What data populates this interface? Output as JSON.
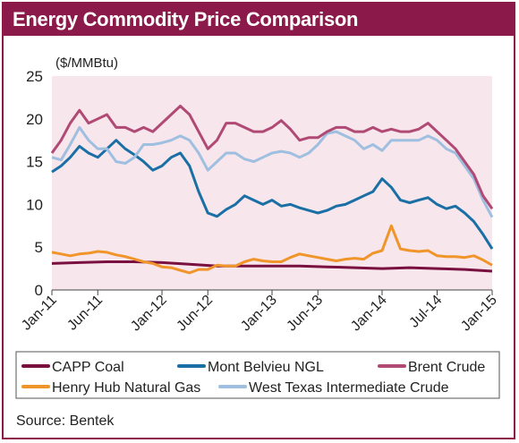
{
  "chart_data": {
    "type": "line",
    "title": "Energy Commodity Price Comparison",
    "ylabel": "($/MMBtu)",
    "ylim": [
      0,
      25
    ],
    "yticks": [
      0,
      5,
      10,
      15,
      20,
      25
    ],
    "xlim": [
      "2011-01",
      "2015-01"
    ],
    "xticks": [
      "Jan-11",
      "Jun-11",
      "Jan-12",
      "Jun-12",
      "Jan-13",
      "Jun-13",
      "Jan-14",
      "Jul-14",
      "Jan-15"
    ],
    "xtick_dates": [
      "2011-01",
      "2011-06",
      "2012-01",
      "2012-06",
      "2013-01",
      "2013-06",
      "2014-01",
      "2014-07",
      "2015-01"
    ],
    "grid": false,
    "legend_position": "bottom",
    "source": "Source: Bentek",
    "series": [
      {
        "name": "CAPP Coal",
        "color": "#7a1040",
        "points": [
          [
            "2011-01",
            3.1
          ],
          [
            "2011-04",
            3.2
          ],
          [
            "2011-07",
            3.3
          ],
          [
            "2011-10",
            3.3
          ],
          [
            "2012-01",
            3.2
          ],
          [
            "2012-04",
            3.0
          ],
          [
            "2012-07",
            2.8
          ],
          [
            "2012-10",
            2.8
          ],
          [
            "2013-01",
            2.8
          ],
          [
            "2013-04",
            2.8
          ],
          [
            "2013-07",
            2.7
          ],
          [
            "2013-10",
            2.6
          ],
          [
            "2014-01",
            2.5
          ],
          [
            "2014-04",
            2.6
          ],
          [
            "2014-07",
            2.5
          ],
          [
            "2014-10",
            2.4
          ],
          [
            "2015-01",
            2.2
          ]
        ]
      },
      {
        "name": "Mont Belvieu NGL",
        "color": "#1a6fa5",
        "points": [
          [
            "2011-01",
            13.8
          ],
          [
            "2011-02",
            14.5
          ],
          [
            "2011-03",
            15.5
          ],
          [
            "2011-04",
            16.8
          ],
          [
            "2011-05",
            16.0
          ],
          [
            "2011-06",
            15.5
          ],
          [
            "2011-07",
            16.5
          ],
          [
            "2011-08",
            17.5
          ],
          [
            "2011-09",
            16.5
          ],
          [
            "2011-10",
            15.8
          ],
          [
            "2011-11",
            15.0
          ],
          [
            "2011-12",
            14.0
          ],
          [
            "2012-01",
            14.5
          ],
          [
            "2012-02",
            15.5
          ],
          [
            "2012-03",
            16.0
          ],
          [
            "2012-04",
            14.5
          ],
          [
            "2012-05",
            11.5
          ],
          [
            "2012-06",
            9.0
          ],
          [
            "2012-07",
            8.6
          ],
          [
            "2012-08",
            9.4
          ],
          [
            "2012-09",
            10.0
          ],
          [
            "2012-10",
            11.0
          ],
          [
            "2012-11",
            10.5
          ],
          [
            "2012-12",
            10.0
          ],
          [
            "2013-01",
            10.5
          ],
          [
            "2013-02",
            9.8
          ],
          [
            "2013-03",
            10.0
          ],
          [
            "2013-04",
            9.6
          ],
          [
            "2013-05",
            9.3
          ],
          [
            "2013-06",
            9.0
          ],
          [
            "2013-07",
            9.3
          ],
          [
            "2013-08",
            9.8
          ],
          [
            "2013-09",
            10.0
          ],
          [
            "2013-10",
            10.5
          ],
          [
            "2013-11",
            11.0
          ],
          [
            "2013-12",
            11.5
          ],
          [
            "2014-01",
            13.0
          ],
          [
            "2014-02",
            12.0
          ],
          [
            "2014-03",
            10.5
          ],
          [
            "2014-04",
            10.2
          ],
          [
            "2014-05",
            10.5
          ],
          [
            "2014-06",
            10.8
          ],
          [
            "2014-07",
            10.0
          ],
          [
            "2014-08",
            9.5
          ],
          [
            "2014-09",
            9.8
          ],
          [
            "2014-10",
            9.0
          ],
          [
            "2014-11",
            8.0
          ],
          [
            "2014-12",
            6.5
          ],
          [
            "2015-01",
            4.8
          ]
        ]
      },
      {
        "name": "Brent Crude",
        "color": "#b04a74",
        "points": [
          [
            "2011-01",
            16.0
          ],
          [
            "2011-02",
            17.5
          ],
          [
            "2011-03",
            19.5
          ],
          [
            "2011-04",
            21.0
          ],
          [
            "2011-05",
            19.5
          ],
          [
            "2011-06",
            20.0
          ],
          [
            "2011-07",
            20.5
          ],
          [
            "2011-08",
            19.0
          ],
          [
            "2011-09",
            19.0
          ],
          [
            "2011-10",
            18.5
          ],
          [
            "2011-11",
            19.0
          ],
          [
            "2011-12",
            18.5
          ],
          [
            "2012-01",
            19.5
          ],
          [
            "2012-02",
            20.5
          ],
          [
            "2012-03",
            21.5
          ],
          [
            "2012-04",
            20.5
          ],
          [
            "2012-05",
            18.5
          ],
          [
            "2012-06",
            16.5
          ],
          [
            "2012-07",
            17.5
          ],
          [
            "2012-08",
            19.5
          ],
          [
            "2012-09",
            19.5
          ],
          [
            "2012-10",
            19.0
          ],
          [
            "2012-11",
            18.5
          ],
          [
            "2012-12",
            18.5
          ],
          [
            "2013-01",
            19.0
          ],
          [
            "2013-02",
            19.8
          ],
          [
            "2013-03",
            18.8
          ],
          [
            "2013-04",
            17.5
          ],
          [
            "2013-05",
            17.8
          ],
          [
            "2013-06",
            17.8
          ],
          [
            "2013-07",
            18.5
          ],
          [
            "2013-08",
            19.0
          ],
          [
            "2013-09",
            19.0
          ],
          [
            "2013-10",
            18.5
          ],
          [
            "2013-11",
            18.5
          ],
          [
            "2013-12",
            19.0
          ],
          [
            "2014-01",
            18.5
          ],
          [
            "2014-02",
            18.8
          ],
          [
            "2014-03",
            18.5
          ],
          [
            "2014-04",
            18.5
          ],
          [
            "2014-05",
            18.8
          ],
          [
            "2014-06",
            19.5
          ],
          [
            "2014-07",
            18.5
          ],
          [
            "2014-08",
            17.5
          ],
          [
            "2014-09",
            16.5
          ],
          [
            "2014-10",
            15.0
          ],
          [
            "2014-11",
            13.5
          ],
          [
            "2014-12",
            11.0
          ],
          [
            "2015-01",
            9.5
          ]
        ]
      },
      {
        "name": "Henry Hub Natural Gas",
        "color": "#f0952a",
        "points": [
          [
            "2011-01",
            4.4
          ],
          [
            "2011-02",
            4.2
          ],
          [
            "2011-03",
            4.0
          ],
          [
            "2011-04",
            4.2
          ],
          [
            "2011-05",
            4.3
          ],
          [
            "2011-06",
            4.5
          ],
          [
            "2011-07",
            4.4
          ],
          [
            "2011-08",
            4.1
          ],
          [
            "2011-09",
            3.9
          ],
          [
            "2011-10",
            3.6
          ],
          [
            "2011-11",
            3.3
          ],
          [
            "2011-12",
            3.1
          ],
          [
            "2012-01",
            2.7
          ],
          [
            "2012-02",
            2.6
          ],
          [
            "2012-03",
            2.3
          ],
          [
            "2012-04",
            2.0
          ],
          [
            "2012-05",
            2.4
          ],
          [
            "2012-06",
            2.4
          ],
          [
            "2012-07",
            2.9
          ],
          [
            "2012-08",
            2.8
          ],
          [
            "2012-09",
            2.8
          ],
          [
            "2012-10",
            3.3
          ],
          [
            "2012-11",
            3.6
          ],
          [
            "2012-12",
            3.4
          ],
          [
            "2013-01",
            3.3
          ],
          [
            "2013-02",
            3.3
          ],
          [
            "2013-03",
            3.8
          ],
          [
            "2013-04",
            4.2
          ],
          [
            "2013-05",
            4.0
          ],
          [
            "2013-06",
            3.8
          ],
          [
            "2013-07",
            3.6
          ],
          [
            "2013-08",
            3.4
          ],
          [
            "2013-09",
            3.6
          ],
          [
            "2013-10",
            3.7
          ],
          [
            "2013-11",
            3.6
          ],
          [
            "2013-12",
            4.3
          ],
          [
            "2014-01",
            4.6
          ],
          [
            "2014-02",
            7.5
          ],
          [
            "2014-03",
            4.8
          ],
          [
            "2014-04",
            4.6
          ],
          [
            "2014-05",
            4.5
          ],
          [
            "2014-06",
            4.6
          ],
          [
            "2014-07",
            4.0
          ],
          [
            "2014-08",
            3.9
          ],
          [
            "2014-09",
            3.9
          ],
          [
            "2014-10",
            3.8
          ],
          [
            "2014-11",
            4.0
          ],
          [
            "2014-12",
            3.5
          ],
          [
            "2015-01",
            2.9
          ]
        ]
      },
      {
        "name": "West Texas Intermediate Crude",
        "color": "#9fbfe0",
        "points": [
          [
            "2011-01",
            15.5
          ],
          [
            "2011-02",
            15.2
          ],
          [
            "2011-03",
            17.0
          ],
          [
            "2011-04",
            19.0
          ],
          [
            "2011-05",
            17.5
          ],
          [
            "2011-06",
            16.5
          ],
          [
            "2011-07",
            16.5
          ],
          [
            "2011-08",
            15.0
          ],
          [
            "2011-09",
            14.8
          ],
          [
            "2011-10",
            15.5
          ],
          [
            "2011-11",
            17.0
          ],
          [
            "2011-12",
            17.0
          ],
          [
            "2012-01",
            17.2
          ],
          [
            "2012-02",
            17.5
          ],
          [
            "2012-03",
            18.0
          ],
          [
            "2012-04",
            17.5
          ],
          [
            "2012-05",
            16.0
          ],
          [
            "2012-06",
            14.0
          ],
          [
            "2012-07",
            15.0
          ],
          [
            "2012-08",
            16.0
          ],
          [
            "2012-09",
            16.0
          ],
          [
            "2012-10",
            15.3
          ],
          [
            "2012-11",
            15.0
          ],
          [
            "2012-12",
            15.5
          ],
          [
            "2013-01",
            16.0
          ],
          [
            "2013-02",
            16.2
          ],
          [
            "2013-03",
            16.0
          ],
          [
            "2013-04",
            15.5
          ],
          [
            "2013-05",
            16.0
          ],
          [
            "2013-06",
            17.0
          ],
          [
            "2013-07",
            18.3
          ],
          [
            "2013-08",
            18.5
          ],
          [
            "2013-09",
            18.0
          ],
          [
            "2013-10",
            17.5
          ],
          [
            "2013-11",
            16.5
          ],
          [
            "2013-12",
            17.0
          ],
          [
            "2014-01",
            16.3
          ],
          [
            "2014-02",
            17.5
          ],
          [
            "2014-03",
            17.5
          ],
          [
            "2014-04",
            17.5
          ],
          [
            "2014-05",
            17.5
          ],
          [
            "2014-06",
            18.0
          ],
          [
            "2014-07",
            17.5
          ],
          [
            "2014-08",
            16.5
          ],
          [
            "2014-09",
            16.0
          ],
          [
            "2014-10",
            14.5
          ],
          [
            "2014-11",
            13.0
          ],
          [
            "2014-12",
            10.5
          ],
          [
            "2015-01",
            8.5
          ]
        ]
      }
    ]
  },
  "colors": {
    "frame": "#8b1a4a",
    "plot_background": "#f7e6ec"
  }
}
